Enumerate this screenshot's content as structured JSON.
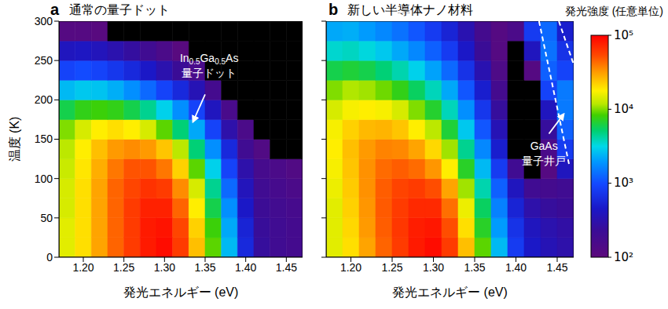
{
  "colorbar": {
    "title": "発光強度 (任意単位)",
    "range": [
      100,
      100000
    ],
    "log": true,
    "ticks": [
      {
        "value": 100,
        "label": "10²"
      },
      {
        "value": 1000,
        "label": "10³"
      },
      {
        "value": 10000,
        "label": "10⁴"
      },
      {
        "value": 100000,
        "label": "10⁵"
      }
    ]
  },
  "chart_data": [
    {
      "type": "heatmap",
      "panel": "a",
      "title": "通常の量子ドット",
      "x_label": "発光エネルギー (eV)",
      "y_label": "温度 (K)",
      "xlim": [
        1.17,
        1.47
      ],
      "xticks": [
        {
          "value": 1.2,
          "label": "1.20"
        },
        {
          "value": 1.25,
          "label": "1.25"
        },
        {
          "value": 1.3,
          "label": "1.30"
        },
        {
          "value": 1.35,
          "label": "1.35"
        },
        {
          "value": 1.4,
          "label": "1.40"
        },
        {
          "value": 1.45,
          "label": "1.45"
        }
      ],
      "ylim": [
        0,
        300
      ],
      "yticks": [
        0,
        50,
        100,
        150,
        200,
        250,
        300
      ],
      "x_bins": [
        1.17,
        1.19,
        1.21,
        1.23,
        1.25,
        1.27,
        1.29,
        1.31,
        1.33,
        1.35,
        1.37,
        1.39,
        1.41,
        1.43,
        1.45,
        1.47
      ],
      "y_bins": [
        0,
        25,
        50,
        75,
        100,
        125,
        150,
        175,
        200,
        225,
        250,
        275,
        300
      ],
      "z": [
        [
          15000,
          20000,
          30000,
          45000,
          60000,
          80000,
          90000,
          60000,
          25000,
          9000,
          2500,
          600,
          250,
          200,
          180
        ],
        [
          15000,
          20000,
          30000,
          45000,
          60000,
          80000,
          85000,
          55000,
          22000,
          8000,
          2200,
          550,
          240,
          200,
          180
        ],
        [
          14000,
          20000,
          30000,
          45000,
          60000,
          75000,
          75000,
          45000,
          18000,
          6000,
          1800,
          450,
          220,
          190,
          170
        ],
        [
          14000,
          20000,
          30000,
          45000,
          55000,
          65000,
          60000,
          35000,
          14000,
          4500,
          1300,
          380,
          200,
          170,
          150
        ],
        [
          13000,
          19000,
          28000,
          40000,
          50000,
          50000,
          40000,
          22000,
          9000,
          3000,
          900,
          300,
          170,
          150,
          130
        ],
        [
          12000,
          18000,
          25000,
          32000,
          35000,
          32000,
          24000,
          12000,
          5000,
          1800,
          600,
          200,
          130,
          60,
          60
        ],
        [
          10000,
          14000,
          18000,
          20000,
          18000,
          14000,
          9000,
          5000,
          2200,
          900,
          300,
          150,
          60,
          50,
          50
        ],
        [
          6000,
          7500,
          8000,
          7500,
          6000,
          4500,
          3000,
          1800,
          900,
          400,
          160,
          60,
          50,
          50,
          50
        ],
        [
          2500,
          2800,
          2700,
          2300,
          1800,
          1300,
          900,
          600,
          350,
          180,
          60,
          50,
          50,
          50,
          50
        ],
        [
          900,
          1000,
          900,
          750,
          600,
          450,
          320,
          230,
          160,
          60,
          50,
          50,
          50,
          50,
          50
        ],
        [
          400,
          420,
          380,
          320,
          260,
          200,
          150,
          110,
          60,
          50,
          50,
          50,
          50,
          50,
          50
        ],
        [
          120,
          120,
          110,
          60,
          50,
          50,
          50,
          50,
          50,
          50,
          50,
          50,
          50,
          50,
          50
        ]
      ],
      "annotations": [
        {
          "lines": [
            "In0.5Ga0.5As",
            "量子ドット"
          ],
          "x": 1.355,
          "y": 243,
          "arrow_from": [
            1.35,
            207
          ],
          "arrow_to": [
            1.335,
            172
          ]
        }
      ]
    },
    {
      "type": "heatmap",
      "panel": "b",
      "title": "新しい半導体ナノ材料",
      "x_label": "発光エネルギー (eV)",
      "tick_labels": "x",
      "xlim": [
        1.17,
        1.47
      ],
      "xticks": [
        {
          "value": 1.2,
          "label": "1.20"
        },
        {
          "value": 1.25,
          "label": "1.25"
        },
        {
          "value": 1.3,
          "label": "1.30"
        },
        {
          "value": 1.35,
          "label": "1.35"
        },
        {
          "value": 1.4,
          "label": "1.40"
        },
        {
          "value": 1.45,
          "label": "1.45"
        }
      ],
      "ylim": [
        0,
        300
      ],
      "yticks": [
        0,
        50,
        100,
        150,
        200,
        250,
        300
      ],
      "x_bins": [
        1.17,
        1.19,
        1.21,
        1.23,
        1.25,
        1.27,
        1.29,
        1.31,
        1.33,
        1.35,
        1.37,
        1.39,
        1.41,
        1.43,
        1.45,
        1.47
      ],
      "y_bins": [
        0,
        25,
        50,
        75,
        100,
        125,
        150,
        175,
        200,
        225,
        250,
        275,
        300
      ],
      "z": [
        [
          15000,
          20000,
          30000,
          45000,
          60000,
          80000,
          90000,
          60000,
          25000,
          9000,
          2500,
          800,
          450,
          350,
          300
        ],
        [
          15000,
          21000,
          32000,
          47000,
          62000,
          78000,
          82000,
          52000,
          20000,
          7000,
          2000,
          700,
          400,
          320,
          280
        ],
        [
          15000,
          22000,
          33000,
          48000,
          60000,
          70000,
          70000,
          42000,
          16000,
          5500,
          1600,
          550,
          300,
          250,
          230
        ],
        [
          16000,
          23000,
          34000,
          47000,
          56000,
          60000,
          52000,
          30000,
          11000,
          4000,
          1200,
          400,
          200,
          180,
          200
        ],
        [
          17000,
          24000,
          34000,
          43000,
          47000,
          43000,
          33000,
          18000,
          7000,
          2500,
          800,
          200,
          70,
          120,
          400
        ],
        [
          18000,
          25000,
          32000,
          37000,
          36000,
          30000,
          21000,
          11000,
          4500,
          1700,
          500,
          90,
          60,
          150,
          800
        ],
        [
          17000,
          22000,
          26000,
          27000,
          24000,
          18000,
          12000,
          6500,
          2800,
          1100,
          350,
          70,
          60,
          250,
          1200
        ],
        [
          14000,
          17000,
          18000,
          17000,
          14000,
          10000,
          6800,
          3800,
          1800,
          750,
          250,
          60,
          60,
          400,
          1500
        ],
        [
          10000,
          11500,
          11000,
          9500,
          7500,
          5500,
          3800,
          2200,
          1100,
          500,
          180,
          60,
          70,
          900,
          1500
        ],
        [
          6000,
          6500,
          6000,
          5000,
          4000,
          3000,
          2100,
          1300,
          700,
          330,
          140,
          70,
          120,
          1200,
          900
        ],
        [
          3500,
          3700,
          3300,
          2800,
          2200,
          1700,
          1200,
          800,
          450,
          230,
          120,
          80,
          400,
          1400,
          700
        ],
        [
          2200,
          2300,
          2000,
          1700,
          1400,
          1100,
          800,
          550,
          330,
          180,
          120,
          150,
          800,
          1300,
          500
        ]
      ],
      "dashed_lines": [
        [
          [
            1.428,
            300
          ],
          [
            1.465,
            115
          ]
        ],
        [
          [
            1.452,
            300
          ],
          [
            1.47,
            245
          ]
        ]
      ],
      "annotations": [
        {
          "lines": [
            "GaAs",
            "量子井戸"
          ],
          "x": 1.434,
          "y": 131,
          "arrow_from": [
            1.44,
            157
          ],
          "arrow_to": [
            1.458,
            182
          ]
        }
      ]
    }
  ]
}
